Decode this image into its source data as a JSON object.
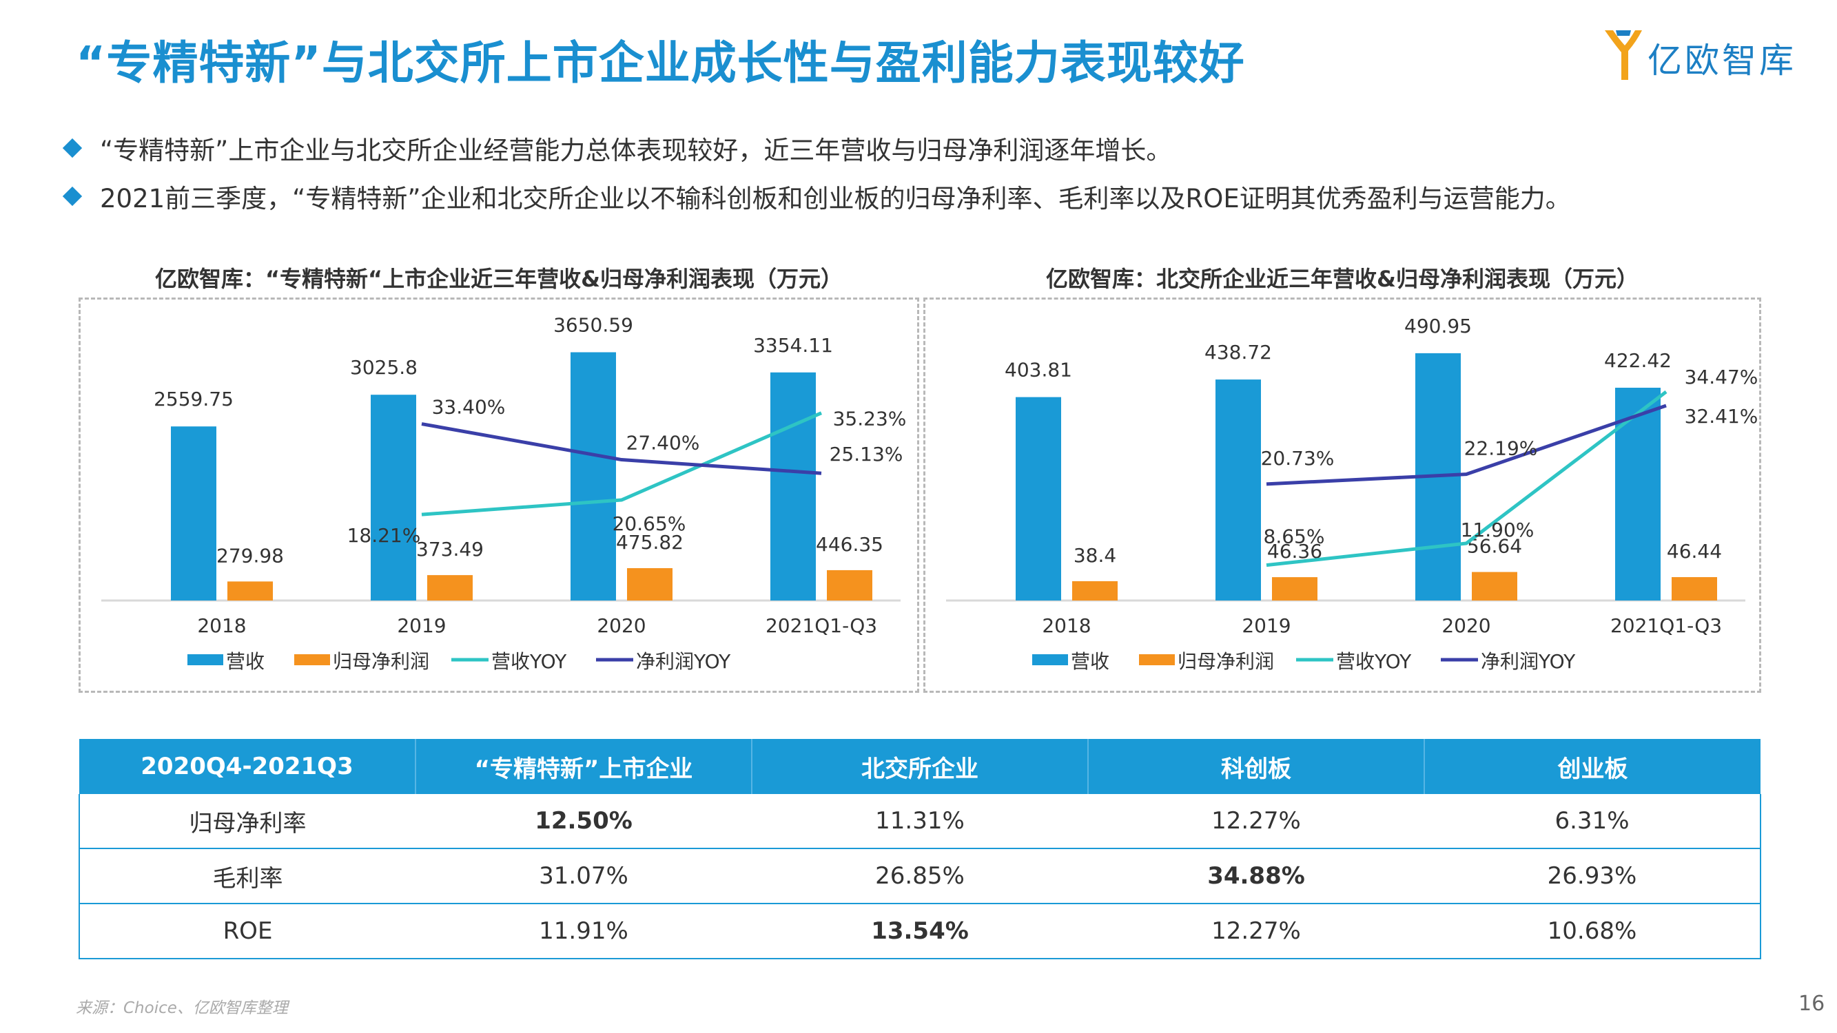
{
  "page": {
    "title": "“专精特新”与北交所上市企业成长性与盈利能力表现较好",
    "logo_text": "亿欧智库",
    "bullets": [
      "“专精特新”上市企业与北交所企业经营能力总体表现较好，近三年营收与归母净利润逐年增长。",
      "2021前三季度，“专精特新”企业和北交所企业以不输科创板和创业板的归母净利率、毛利率以及ROE证明其优秀盈利与运营能力。"
    ],
    "source": "来源：Choice、亿欧智库整理",
    "page_number": "16"
  },
  "colors": {
    "title": "#1a8fd0",
    "revenue_bar": "#1a9ad6",
    "profit_bar": "#f5921e",
    "revenue_yoy": "#2ec4c4",
    "profit_yoy": "#3a3fa8",
    "table_header": "#1a9ad6"
  },
  "chart_data": [
    {
      "type": "bar",
      "title": "亿欧智库：“专精特新“上市企业近三年营收&归母净利润表现（万元）",
      "categories": [
        "2018",
        "2019",
        "2020",
        "2021Q1-Q3"
      ],
      "ylim": [
        0,
        4000
      ],
      "ylim_pct": [
        0,
        45
      ],
      "series": [
        {
          "name": "营收",
          "kind": "bar",
          "values": [
            2559.75,
            3025.8,
            3650.59,
            3354.11
          ],
          "labels": [
            "2559.75",
            "3025.8",
            "3650.59",
            "3354.11"
          ]
        },
        {
          "name": "归母净利润",
          "kind": "bar",
          "values": [
            279.98,
            373.49,
            475.82,
            446.35
          ],
          "labels": [
            "279.98",
            "373.49",
            "475.82",
            "446.35"
          ]
        },
        {
          "name": "营收YOY",
          "kind": "line",
          "values": [
            null,
            18.21,
            20.65,
            35.23
          ],
          "labels": [
            "",
            "18.21%",
            "20.65%",
            "35.23%"
          ]
        },
        {
          "name": "净利润YOY",
          "kind": "line",
          "values": [
            null,
            33.4,
            27.4,
            25.13
          ],
          "labels": [
            "",
            "33.40%",
            "27.40%",
            "25.13%"
          ]
        }
      ],
      "legend": "bottom"
    },
    {
      "type": "bar",
      "title": "亿欧智库：北交所企业近三年营收&归母净利润表现（万元）",
      "categories": [
        "2018",
        "2019",
        "2020",
        "2021Q1-Q3"
      ],
      "ylim": [
        0,
        540
      ],
      "ylim_pct": [
        0,
        40
      ],
      "series": [
        {
          "name": "营收",
          "kind": "bar",
          "values": [
            403.81,
            438.72,
            490.95,
            422.42
          ],
          "labels": [
            "403.81",
            "438.72",
            "490.95",
            "422.42"
          ]
        },
        {
          "name": "归母净利润",
          "kind": "bar",
          "values": [
            38.4,
            46.36,
            56.64,
            46.44
          ],
          "labels": [
            "38.4",
            "46.36",
            "56.64",
            "46.44"
          ]
        },
        {
          "name": "营收YOY",
          "kind": "line",
          "values": [
            null,
            8.65,
            11.9,
            34.47
          ],
          "labels": [
            "",
            "8.65%",
            "11.90%",
            "34.47%"
          ]
        },
        {
          "name": "净利润YOY",
          "kind": "line",
          "values": [
            null,
            20.73,
            22.19,
            32.41
          ],
          "labels": [
            "",
            "20.73%",
            "22.19%",
            "32.41%"
          ]
        }
      ],
      "legend": "bottom"
    }
  ],
  "table": {
    "headers": [
      "2020Q4-2021Q3",
      "“专精特新”上市企业",
      "北交所企业",
      "科创板",
      "创业板"
    ],
    "rows": [
      {
        "cells": [
          "归母净利率",
          "12.50%",
          "11.31%",
          "12.27%",
          "6.31%"
        ],
        "bold_index": 1
      },
      {
        "cells": [
          "毛利率",
          "31.07%",
          "26.85%",
          "34.88%",
          "26.93%"
        ],
        "bold_index": 3
      },
      {
        "cells": [
          "ROE",
          "11.91%",
          "13.54%",
          "12.27%",
          "10.68%"
        ],
        "bold_index": 2
      }
    ]
  }
}
